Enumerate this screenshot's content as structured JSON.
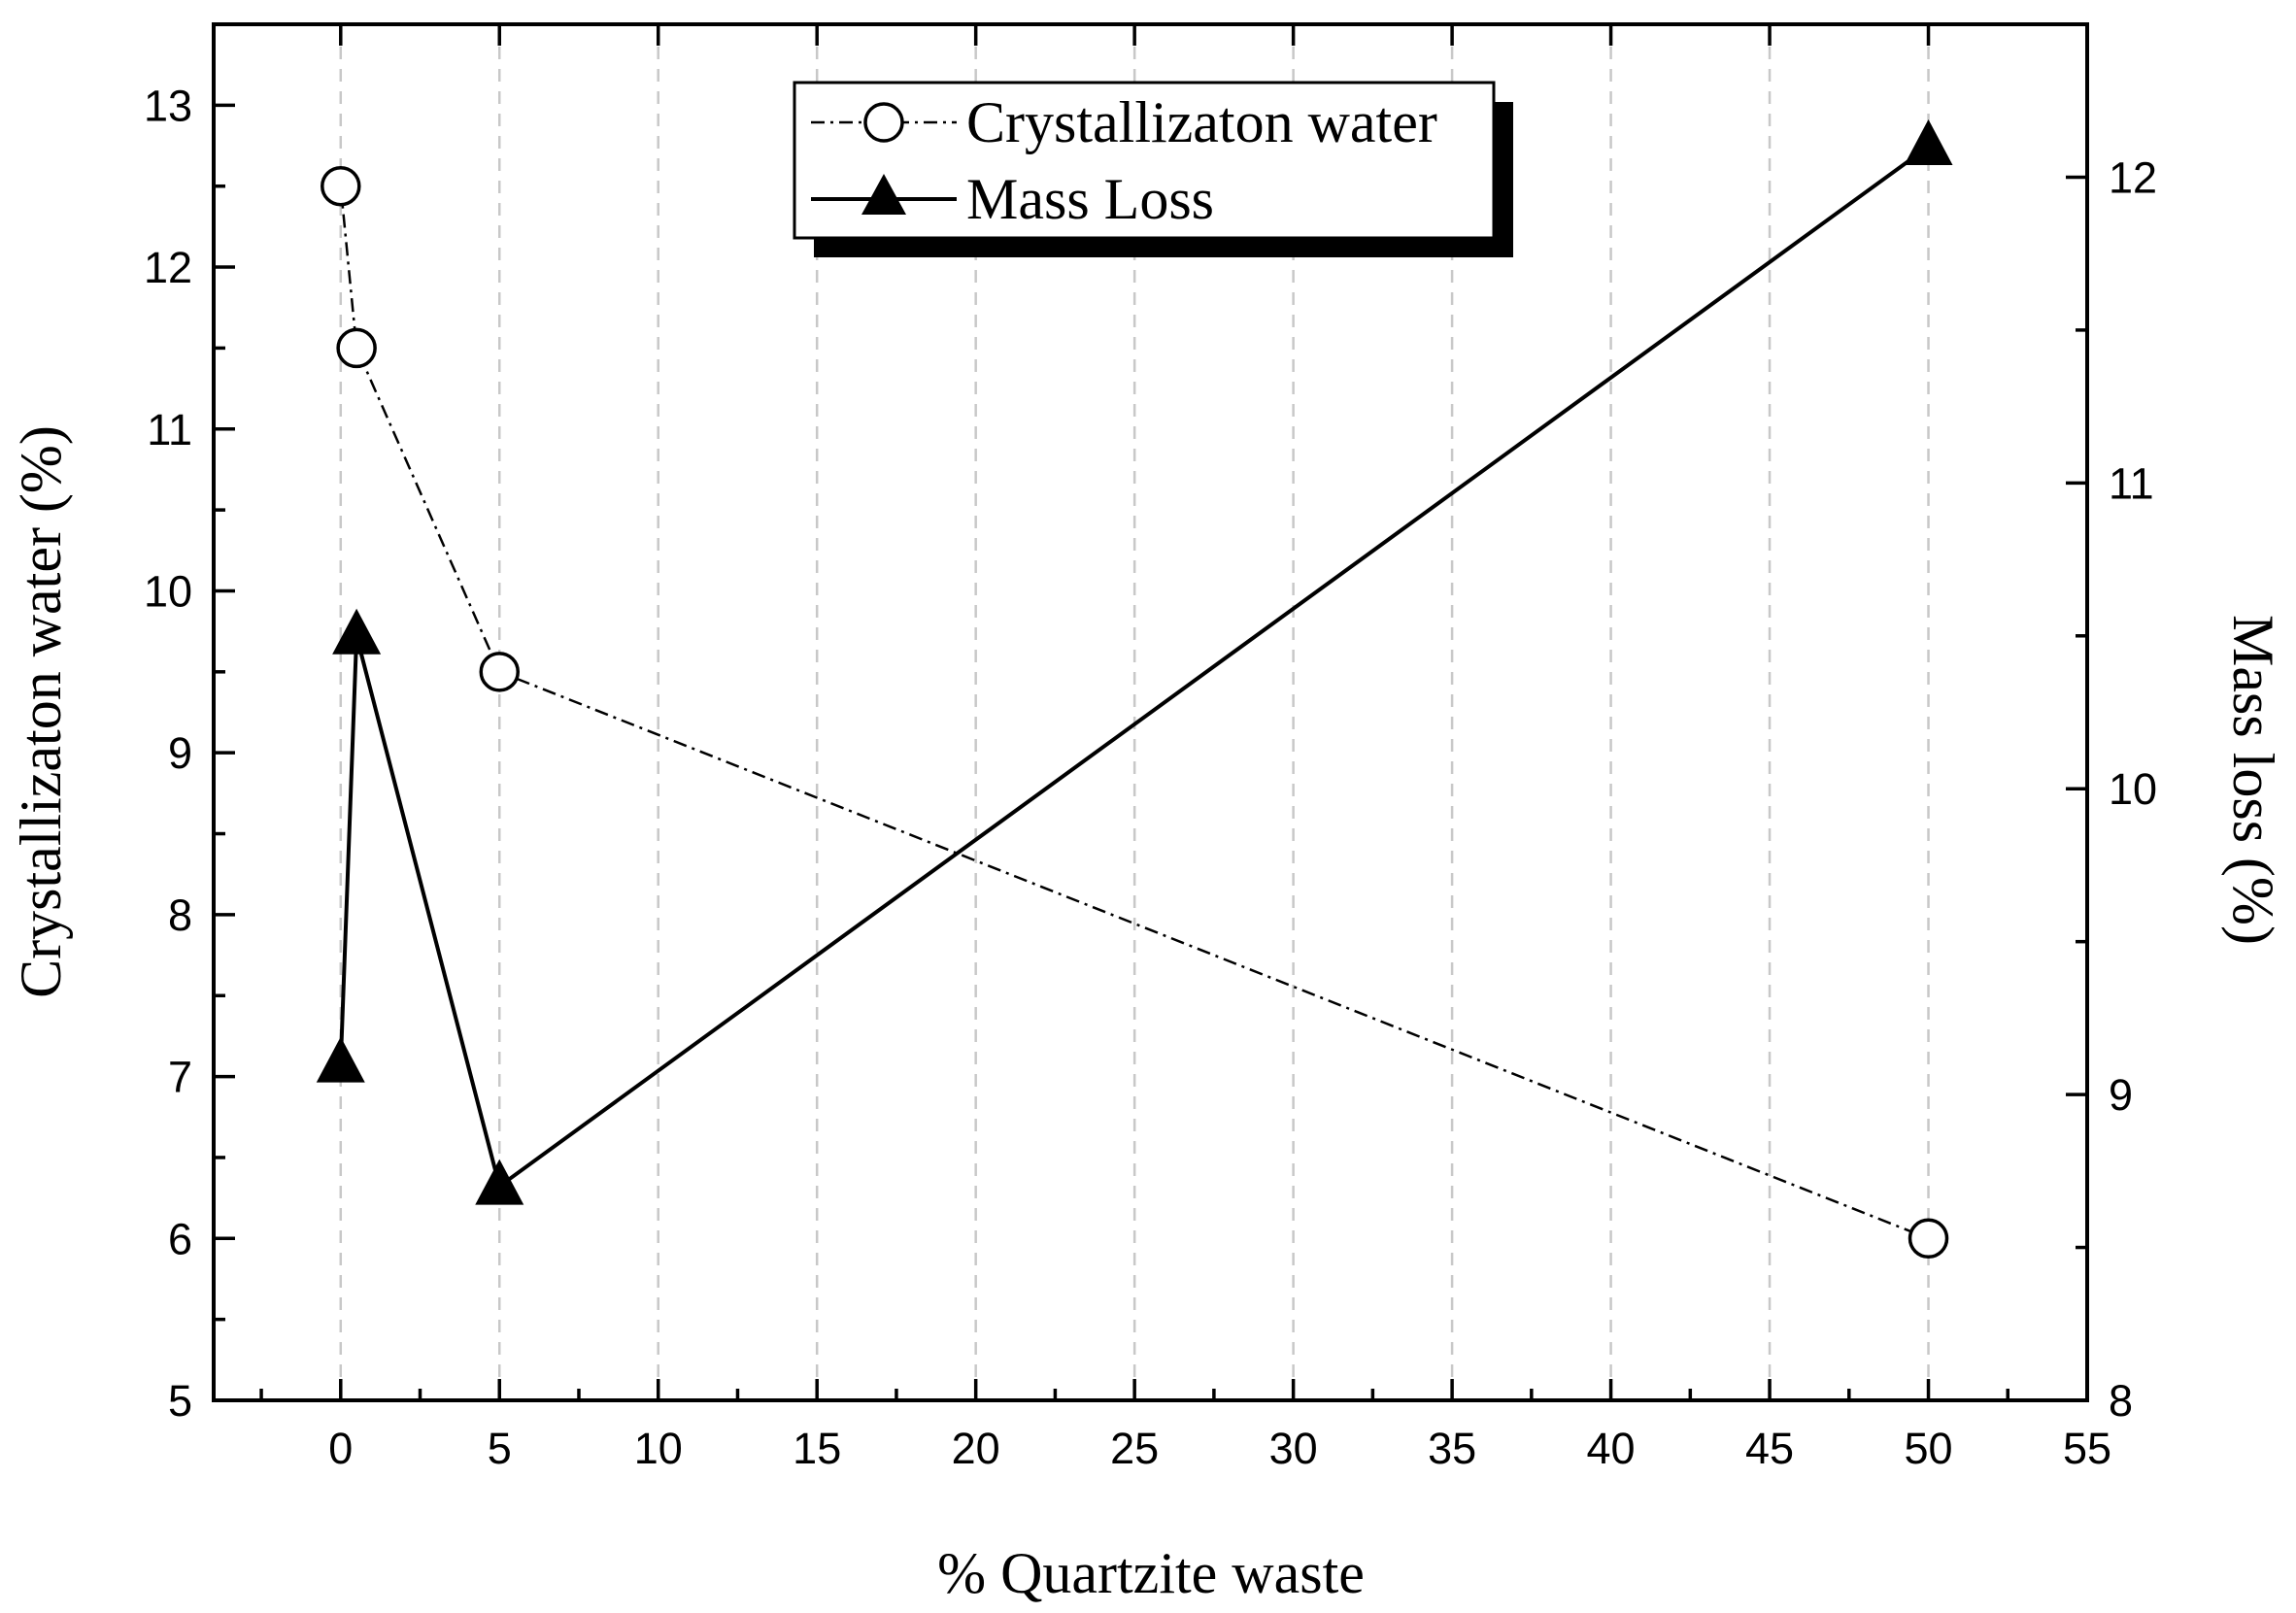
{
  "chart_data": {
    "type": "line",
    "xlabel": "% Quartzite waste",
    "ylabel_left": "Crystallizaton water (%)",
    "ylabel_right": "Mass loss (%)",
    "xlim": [
      -4,
      55
    ],
    "ylim_left": [
      5,
      13.5
    ],
    "ylim_right": [
      8,
      12.5
    ],
    "x_ticks": [
      0,
      5,
      10,
      15,
      20,
      25,
      30,
      35,
      40,
      45,
      50,
      55
    ],
    "x_minor_step": 2.5,
    "y_left_ticks": [
      5,
      6,
      7,
      8,
      9,
      10,
      11,
      12,
      13
    ],
    "y_left_minor_step": 0.5,
    "y_right_ticks": [
      8,
      9,
      10,
      11,
      12
    ],
    "y_right_minor_step": 0.5,
    "grid": "vertical dashed",
    "legend_position": "top-center",
    "series": [
      {
        "name": "Crystallizaton water",
        "axis": "left",
        "marker": "open-circle",
        "line": "dash-dot",
        "x": [
          0,
          0.5,
          5,
          50
        ],
        "values": [
          12.5,
          11.5,
          9.5,
          6.0
        ]
      },
      {
        "name": "Mass Loss",
        "axis": "right",
        "marker": "filled-triangle",
        "line": "solid",
        "x": [
          0,
          0.5,
          5,
          50
        ],
        "values": [
          9.1,
          10.5,
          8.7,
          12.1
        ]
      }
    ]
  }
}
